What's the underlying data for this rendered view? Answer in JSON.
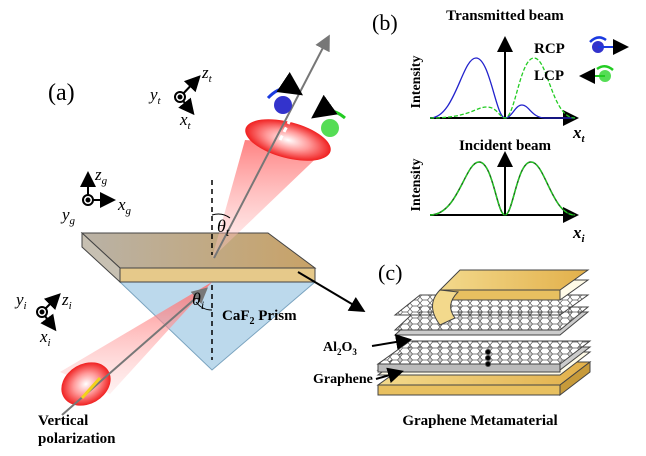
{
  "panel_a": {
    "label": "(a)",
    "prism": [
      "CaF",
      "2",
      " Prism"
    ],
    "theta_t": [
      "θ",
      "t"
    ],
    "theta_i": [
      "θ",
      "i"
    ],
    "input_label": [
      "Vertical",
      "polarization"
    ],
    "frame_t": {
      "y": [
        "y",
        "t"
      ],
      "z": [
        "z",
        "t"
      ],
      "x": [
        "x",
        "t"
      ]
    },
    "frame_g": {
      "y": [
        "y",
        "g"
      ],
      "z": [
        "z",
        "g"
      ],
      "x": [
        "x",
        "g"
      ]
    },
    "frame_i": {
      "y": [
        "y",
        "i"
      ],
      "z": [
        "z",
        "i"
      ],
      "x": [
        "x",
        "i"
      ]
    }
  },
  "panel_b": {
    "label": "(b)",
    "transmitted_title": "Transmitted beam",
    "incident_title": "Incident beam",
    "y_label": "Intensity",
    "x_top": [
      "x",
      "t"
    ],
    "x_bottom": [
      "x",
      "i"
    ],
    "legend": [
      "RCP",
      "LCP"
    ]
  },
  "panel_c": {
    "label": "(c)",
    "oxide": [
      "Al",
      "2",
      "O",
      "3"
    ],
    "graphene": "Graphene",
    "title": "Graphene Metamaterial"
  }
}
